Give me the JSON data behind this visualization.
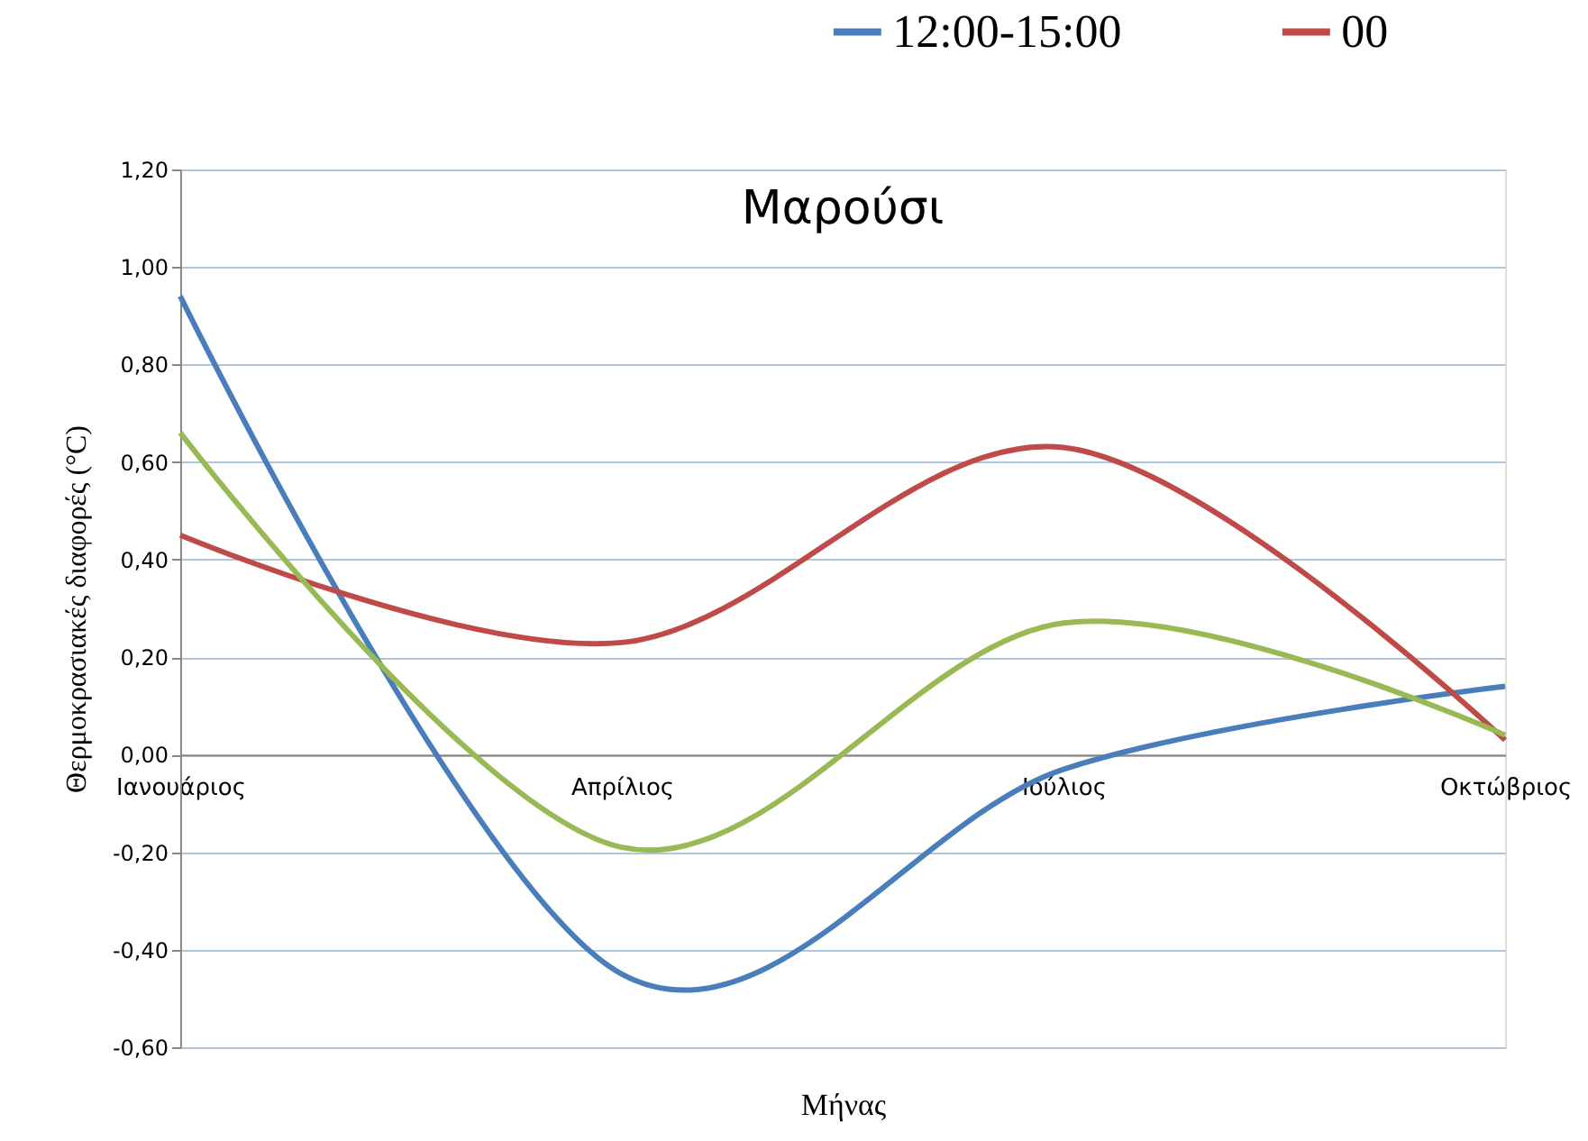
{
  "chart_data": {
    "type": "line",
    "title": "Μαρούσι",
    "xlabel": "Μήνας",
    "ylabel": "Θερμοκρασιακές διαφορές (°C)",
    "categories": [
      "Ιανουάριος",
      "Απρίλιος",
      "Ιούλιος",
      "Οκτώβριος"
    ],
    "series": [
      {
        "name": "12:00-15:00",
        "color": "#4a7ebb",
        "values": [
          0.94,
          -0.45,
          -0.03,
          0.14
        ]
      },
      {
        "name": "00",
        "color": "#be4b48",
        "values": [
          0.45,
          0.23,
          0.63,
          0.03
        ]
      },
      {
        "color": "#98b954",
        "values": [
          0.66,
          -0.19,
          0.27,
          0.04
        ]
      }
    ],
    "ylim": [
      -0.6,
      1.2
    ],
    "yticks": [
      {
        "value": -0.6,
        "label": "-0,60"
      },
      {
        "value": -0.4,
        "label": "-0,40"
      },
      {
        "value": -0.2,
        "label": "-0,20"
      },
      {
        "value": 0,
        "label": "0,00"
      },
      {
        "value": 0.2,
        "label": "0,20"
      },
      {
        "value": 0.4,
        "label": "0,40"
      },
      {
        "value": 0.6,
        "label": "0,60"
      },
      {
        "value": 0.8,
        "label": "0,80"
      },
      {
        "value": 1.0,
        "label": "1,00"
      },
      {
        "value": 1.2,
        "label": "1,20"
      }
    ],
    "grid": "y",
    "legend": "top right",
    "marker": "none",
    "line_style": "solid"
  }
}
